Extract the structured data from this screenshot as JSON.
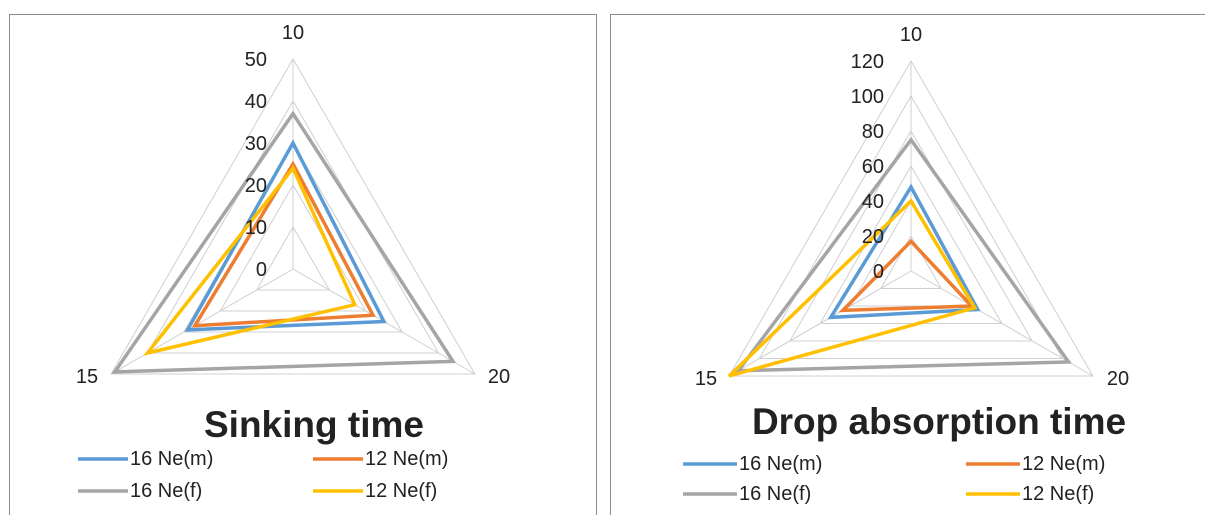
{
  "chart_data": [
    {
      "type": "radar",
      "title": "Sinking time",
      "categories": [
        "10",
        "20",
        "15"
      ],
      "rlim": [
        0,
        50
      ],
      "ticks": [
        "0",
        "10",
        "20",
        "30",
        "40",
        "50"
      ],
      "grid": true,
      "legend_position": "bottom",
      "series": [
        {
          "name": "16 Ne(m)",
          "color": "#5b9bd5",
          "values": [
            30,
            25,
            29
          ]
        },
        {
          "name": "12 Ne(m)",
          "color": "#ed7d31",
          "values": [
            25,
            22,
            27
          ]
        },
        {
          "name": "16 Ne(f)",
          "color": "#a5a5a5",
          "values": [
            37,
            44,
            49
          ]
        },
        {
          "name": "12 Ne(f)",
          "color": "#ffc000",
          "values": [
            24,
            17,
            40
          ]
        }
      ]
    },
    {
      "type": "radar",
      "title": "Drop absorption time",
      "categories": [
        "10",
        "20",
        "15"
      ],
      "rlim": [
        0,
        120
      ],
      "ticks": [
        "0",
        "20",
        "40",
        "60",
        "80",
        "100",
        "120"
      ],
      "grid": true,
      "legend_position": "bottom",
      "series": [
        {
          "name": "16 Ne(m)",
          "color": "#5b9bd5",
          "values": [
            48,
            44,
            53
          ]
        },
        {
          "name": "12 Ne(m)",
          "color": "#ed7d31",
          "values": [
            17,
            40,
            45
          ]
        },
        {
          "name": "16 Ne(f)",
          "color": "#a5a5a5",
          "values": [
            75,
            104,
            114
          ]
        },
        {
          "name": "12 Ne(f)",
          "color": "#ffc000",
          "values": [
            40,
            42,
            120
          ]
        }
      ]
    }
  ]
}
